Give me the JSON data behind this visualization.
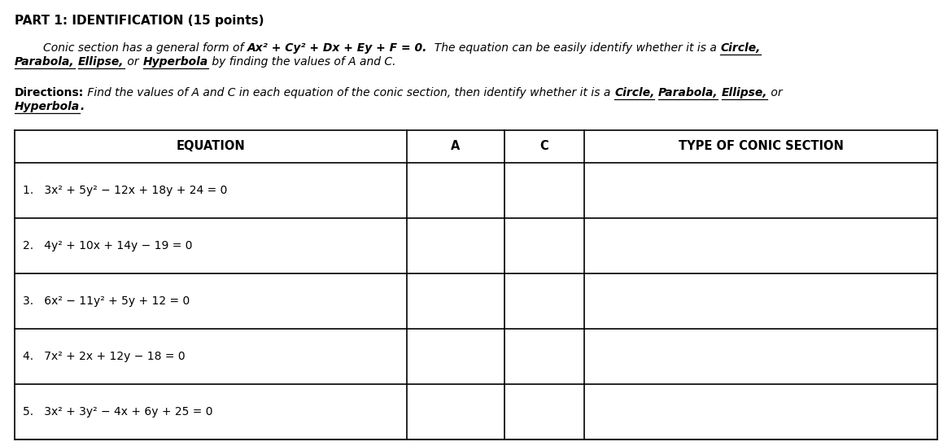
{
  "title": "PART 1: IDENTIFICATION (15 points)",
  "col_headers": [
    "EQUATION",
    "A",
    "C",
    "TYPE OF CONIC SECTION"
  ],
  "equations": [
    "1.   3x² + 5y² − 12x + 18y + 24 = 0",
    "2.   4y² + 10x + 14y − 19 = 0",
    "3.   6x² − 11y² + 5y + 12 = 0",
    "4.   7x² + 2x + 12y − 18 = 0",
    "5.   3x² + 3y² − 4x + 6y + 25 = 0"
  ],
  "background_color": "#ffffff",
  "text_color": "#000000",
  "table_border_color": "#000000",
  "fig_width": 11.7,
  "fig_height": 5.48,
  "dpi": 100
}
